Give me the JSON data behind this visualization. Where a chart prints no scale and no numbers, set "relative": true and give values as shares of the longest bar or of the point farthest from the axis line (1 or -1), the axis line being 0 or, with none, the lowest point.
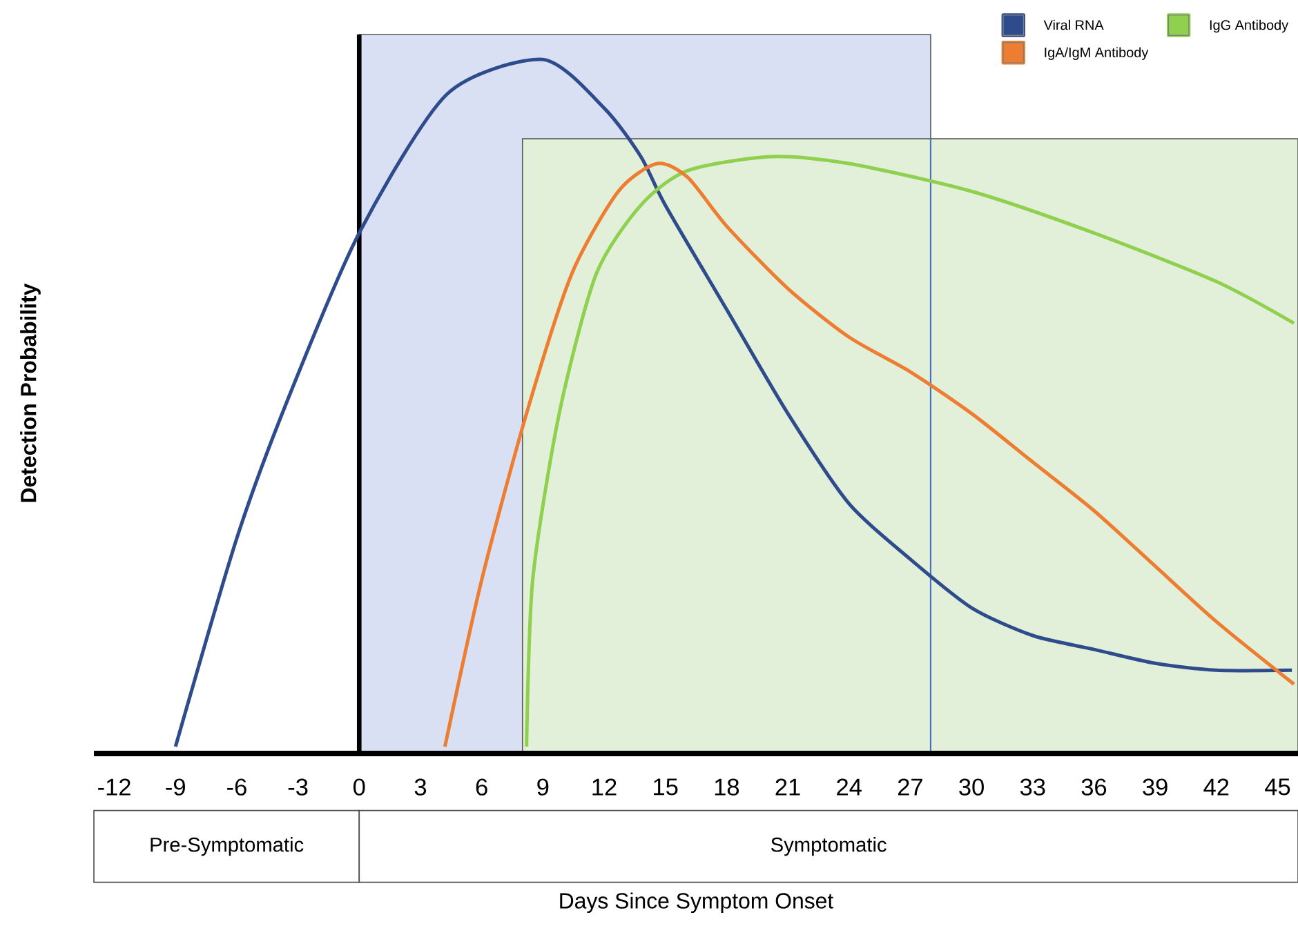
{
  "chart_data": {
    "type": "line",
    "relative": true,
    "xlabel": "Days Since Symptom Onset",
    "ylabel": "Detection Probability",
    "xlim": [
      -13,
      46
    ],
    "xticks": [
      -12,
      -9,
      -6,
      -3,
      0,
      3,
      6,
      9,
      12,
      15,
      18,
      21,
      24,
      27,
      30,
      33,
      36,
      39,
      42,
      45
    ],
    "series": [
      {
        "name": "Viral RNA",
        "color": "#2e4c8c",
        "x": [
          -9,
          -6,
          -3.5,
          0,
          4.3,
          9,
          12,
          13.8,
          15,
          18,
          21,
          24,
          27,
          30,
          33,
          36,
          39,
          42,
          45.7
        ],
        "values": [
          0.01,
          0.31,
          0.51,
          0.75,
          0.95,
          1.0,
          0.93,
          0.86,
          0.79,
          0.64,
          0.49,
          0.36,
          0.28,
          0.21,
          0.17,
          0.15,
          0.13,
          0.12,
          0.12
        ]
      },
      {
        "name": "IgG Antibody",
        "color": "#8fd14f",
        "x": [
          8.2,
          8.5,
          9.8,
          11.6,
          13.8,
          16.1,
          20.2,
          24,
          30,
          36,
          42,
          45.8
        ],
        "values": [
          0.01,
          0.25,
          0.49,
          0.69,
          0.79,
          0.84,
          0.86,
          0.85,
          0.81,
          0.75,
          0.68,
          0.62
        ]
      },
      {
        "name": "IgA/IgM Antibody",
        "color": "#ed7d31",
        "x": [
          4.2,
          6,
          8.2,
          10.4,
          12.7,
          14.6,
          16.1,
          18,
          21,
          24,
          27,
          30,
          33,
          36,
          39,
          42,
          45.8
        ],
        "values": [
          0.01,
          0.25,
          0.49,
          0.69,
          0.81,
          0.85,
          0.83,
          0.76,
          0.67,
          0.6,
          0.55,
          0.49,
          0.42,
          0.35,
          0.27,
          0.19,
          0.1
        ]
      }
    ],
    "bands": [
      {
        "axis": "x",
        "from": 0,
        "to": 28,
        "color": "#dae0f3"
      },
      {
        "axis": "x",
        "from": 8,
        "to": 46,
        "color": "#e2efd9"
      }
    ],
    "ref_lines": [
      {
        "axis": "x",
        "value": 28,
        "color": "#4472c4"
      }
    ],
    "annotations": [
      "Pre-Symptomatic",
      "Symptomatic"
    ],
    "legend": "top right",
    "marker": "none",
    "line_style": "solid"
  }
}
